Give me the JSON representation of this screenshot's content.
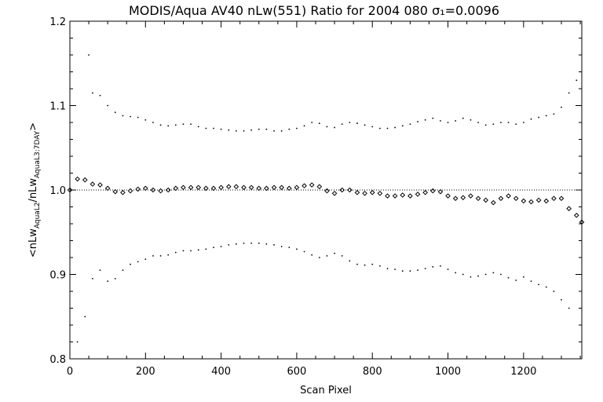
{
  "chart_data": {
    "type": "scatter",
    "title": "MODIS/Aqua AV40 nLw(551) Ratio for 2004 080 σ₁=0.0096",
    "xlabel": "Scan Pixel",
    "ylabel": "<nLw_AquaL2/nLw_AquaL3:7DAY>",
    "ylabel_parts": {
      "open": "<nLw",
      "sub1": "AquaL2",
      "mid": "/nLw",
      "sub2": "AquaL3:7DAY",
      "close": ">"
    },
    "xlim": [
      0,
      1354
    ],
    "ylim": [
      0.8,
      1.2
    ],
    "xticks": [
      0,
      200,
      400,
      600,
      800,
      1000,
      1200
    ],
    "yticks": [
      0.8,
      0.9,
      1.0,
      1.1,
      1.2
    ],
    "xtick_labels": [
      "0",
      "200",
      "400",
      "600",
      "800",
      "1000",
      "1200"
    ],
    "ytick_labels": [
      "0.8",
      "0.9",
      "1.0",
      "1.1",
      "1.2"
    ],
    "reference_line": 1.0,
    "series": [
      {
        "role": "mean_ratio",
        "marker": "diamond",
        "x": [
          0,
          20,
          40,
          60,
          80,
          100,
          120,
          140,
          160,
          180,
          200,
          220,
          240,
          260,
          280,
          300,
          320,
          340,
          360,
          380,
          400,
          420,
          440,
          460,
          480,
          500,
          520,
          540,
          560,
          580,
          600,
          620,
          640,
          660,
          680,
          700,
          720,
          740,
          760,
          780,
          800,
          820,
          840,
          860,
          880,
          900,
          920,
          940,
          960,
          980,
          1000,
          1020,
          1040,
          1060,
          1080,
          1100,
          1120,
          1140,
          1160,
          1180,
          1200,
          1220,
          1240,
          1260,
          1280,
          1300,
          1320,
          1340,
          1354
        ],
        "y": [
          1.0,
          1.013,
          1.012,
          1.007,
          1.006,
          1.002,
          0.998,
          0.997,
          0.999,
          1.001,
          1.002,
          1.0,
          0.999,
          1.0,
          1.002,
          1.003,
          1.003,
          1.003,
          1.002,
          1.002,
          1.003,
          1.004,
          1.004,
          1.003,
          1.003,
          1.002,
          1.002,
          1.003,
          1.003,
          1.002,
          1.003,
          1.005,
          1.006,
          1.004,
          0.999,
          0.996,
          1.0,
          1.0,
          0.997,
          0.996,
          0.997,
          0.996,
          0.993,
          0.993,
          0.994,
          0.993,
          0.995,
          0.997,
          0.999,
          0.998,
          0.993,
          0.99,
          0.991,
          0.993,
          0.99,
          0.988,
          0.985,
          0.99,
          0.993,
          0.99,
          0.987,
          0.986,
          0.988,
          0.987,
          0.99,
          0.99,
          0.978,
          0.97,
          0.962
        ]
      },
      {
        "role": "upper_std",
        "marker": "dot",
        "x": [
          50,
          60,
          80,
          100,
          120,
          140,
          160,
          180,
          200,
          220,
          240,
          260,
          280,
          300,
          320,
          340,
          360,
          380,
          400,
          420,
          440,
          460,
          480,
          500,
          520,
          540,
          560,
          580,
          600,
          620,
          640,
          660,
          680,
          700,
          720,
          740,
          760,
          780,
          800,
          820,
          840,
          860,
          880,
          900,
          920,
          940,
          960,
          980,
          1000,
          1020,
          1040,
          1060,
          1080,
          1100,
          1120,
          1140,
          1160,
          1180,
          1200,
          1220,
          1240,
          1260,
          1280,
          1300,
          1320,
          1340
        ],
        "y": [
          1.16,
          1.115,
          1.112,
          1.1,
          1.092,
          1.088,
          1.087,
          1.086,
          1.083,
          1.08,
          1.077,
          1.076,
          1.077,
          1.078,
          1.078,
          1.075,
          1.073,
          1.073,
          1.072,
          1.071,
          1.07,
          1.07,
          1.071,
          1.072,
          1.072,
          1.07,
          1.07,
          1.072,
          1.073,
          1.076,
          1.08,
          1.079,
          1.075,
          1.074,
          1.078,
          1.08,
          1.079,
          1.077,
          1.075,
          1.073,
          1.073,
          1.074,
          1.076,
          1.078,
          1.081,
          1.083,
          1.085,
          1.082,
          1.08,
          1.082,
          1.085,
          1.083,
          1.08,
          1.077,
          1.078,
          1.08,
          1.08,
          1.078,
          1.08,
          1.084,
          1.086,
          1.088,
          1.09,
          1.098,
          1.115,
          1.13
        ]
      },
      {
        "role": "lower_std",
        "marker": "dot",
        "x": [
          20,
          40,
          60,
          80,
          100,
          120,
          140,
          160,
          180,
          200,
          220,
          240,
          260,
          280,
          300,
          320,
          340,
          360,
          380,
          400,
          420,
          440,
          460,
          480,
          500,
          520,
          540,
          560,
          580,
          600,
          620,
          640,
          660,
          680,
          700,
          720,
          740,
          760,
          780,
          800,
          820,
          840,
          860,
          880,
          900,
          920,
          940,
          960,
          980,
          1000,
          1020,
          1040,
          1060,
          1080,
          1100,
          1120,
          1140,
          1160,
          1180,
          1200,
          1220,
          1240,
          1260,
          1280,
          1300,
          1320
        ],
        "y": [
          0.82,
          0.85,
          0.895,
          0.905,
          0.892,
          0.895,
          0.905,
          0.912,
          0.915,
          0.918,
          0.922,
          0.922,
          0.923,
          0.926,
          0.928,
          0.928,
          0.929,
          0.93,
          0.932,
          0.933,
          0.935,
          0.936,
          0.937,
          0.937,
          0.937,
          0.936,
          0.935,
          0.933,
          0.932,
          0.93,
          0.927,
          0.923,
          0.92,
          0.922,
          0.925,
          0.922,
          0.916,
          0.912,
          0.911,
          0.912,
          0.91,
          0.907,
          0.906,
          0.904,
          0.904,
          0.905,
          0.907,
          0.909,
          0.91,
          0.906,
          0.902,
          0.9,
          0.897,
          0.898,
          0.9,
          0.902,
          0.9,
          0.896,
          0.893,
          0.897,
          0.892,
          0.888,
          0.885,
          0.88,
          0.87,
          0.86
        ]
      }
    ]
  }
}
